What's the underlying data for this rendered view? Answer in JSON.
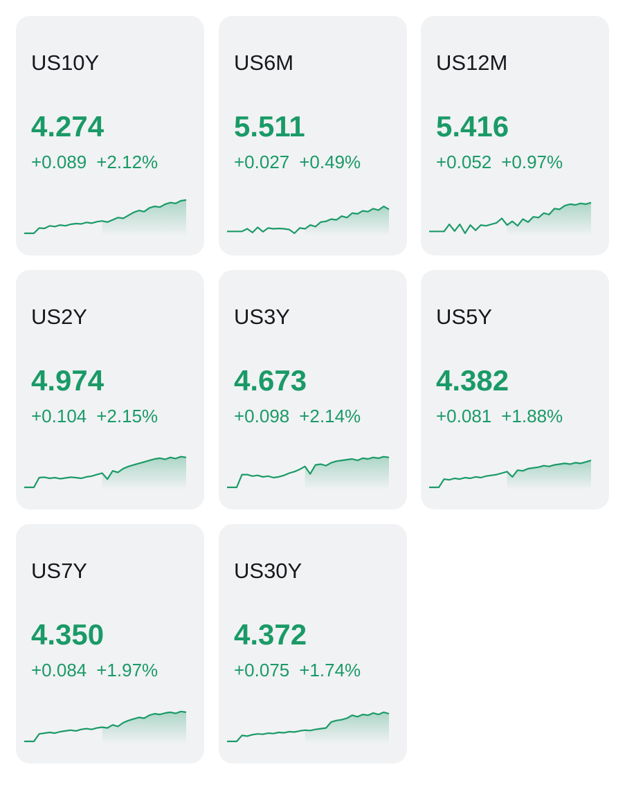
{
  "colors": {
    "positive": "#1a9a67",
    "card_bg": "#f1f2f4",
    "text": "#16181c"
  },
  "cards": [
    {
      "symbol": "US10Y",
      "price": "4.274",
      "change": "+0.089",
      "change_pct": "+2.12%",
      "series": [
        0.0,
        0.14,
        0.13,
        0.2,
        0.18,
        0.22,
        0.2,
        0.24,
        0.26,
        0.25,
        0.29,
        0.27,
        0.31,
        0.33,
        0.3,
        0.36,
        0.42,
        0.4,
        0.48,
        0.56,
        0.61,
        0.58,
        0.68,
        0.72,
        0.7,
        0.78,
        0.82,
        0.8,
        0.87,
        0.89
      ]
    },
    {
      "symbol": "US6M",
      "price": "5.511",
      "change": "+0.027",
      "change_pct": "+0.49%",
      "series": [
        0.05,
        0.05,
        0.12,
        0.02,
        0.16,
        0.04,
        0.14,
        0.12,
        0.13,
        0.12,
        0.1,
        0.0,
        0.14,
        0.12,
        0.22,
        0.18,
        0.3,
        0.32,
        0.38,
        0.36,
        0.46,
        0.42,
        0.54,
        0.52,
        0.6,
        0.58,
        0.66,
        0.62,
        0.72,
        0.64
      ]
    },
    {
      "symbol": "US12M",
      "price": "5.416",
      "change": "+0.052",
      "change_pct": "+0.97%",
      "series": [
        0.05,
        0.05,
        0.24,
        0.06,
        0.24,
        0.0,
        0.22,
        0.08,
        0.22,
        0.2,
        0.24,
        0.28,
        0.4,
        0.22,
        0.32,
        0.2,
        0.38,
        0.3,
        0.44,
        0.42,
        0.54,
        0.5,
        0.66,
        0.64,
        0.74,
        0.78,
        0.76,
        0.8,
        0.78,
        0.82
      ]
    },
    {
      "symbol": "US2Y",
      "price": "4.974",
      "change": "+0.104",
      "change_pct": "+2.15%",
      "series": [
        0.0,
        0.26,
        0.27,
        0.24,
        0.26,
        0.23,
        0.25,
        0.27,
        0.26,
        0.24,
        0.28,
        0.3,
        0.34,
        0.38,
        0.22,
        0.44,
        0.4,
        0.5,
        0.56,
        0.6,
        0.64,
        0.68,
        0.72,
        0.76,
        0.78,
        0.75,
        0.8,
        0.77,
        0.82,
        0.8
      ]
    },
    {
      "symbol": "US3Y",
      "price": "4.673",
      "change": "+0.098",
      "change_pct": "+2.14%",
      "series": [
        0.0,
        0.34,
        0.34,
        0.3,
        0.32,
        0.28,
        0.3,
        0.26,
        0.28,
        0.32,
        0.38,
        0.42,
        0.48,
        0.56,
        0.36,
        0.6,
        0.62,
        0.58,
        0.66,
        0.7,
        0.72,
        0.74,
        0.76,
        0.72,
        0.78,
        0.76,
        0.8,
        0.78,
        0.82,
        0.8
      ]
    },
    {
      "symbol": "US5Y",
      "price": "4.382",
      "change": "+0.081",
      "change_pct": "+1.88%",
      "series": [
        0.0,
        0.22,
        0.2,
        0.24,
        0.22,
        0.26,
        0.24,
        0.28,
        0.26,
        0.3,
        0.32,
        0.34,
        0.38,
        0.42,
        0.28,
        0.46,
        0.44,
        0.5,
        0.52,
        0.54,
        0.58,
        0.56,
        0.6,
        0.62,
        0.64,
        0.62,
        0.66,
        0.64,
        0.68,
        0.72
      ]
    },
    {
      "symbol": "US7Y",
      "price": "4.350",
      "change": "+0.084",
      "change_pct": "+1.97%",
      "series": [
        0.0,
        0.2,
        0.22,
        0.24,
        0.22,
        0.26,
        0.28,
        0.3,
        0.28,
        0.32,
        0.34,
        0.32,
        0.36,
        0.38,
        0.36,
        0.44,
        0.4,
        0.5,
        0.56,
        0.6,
        0.64,
        0.62,
        0.7,
        0.74,
        0.72,
        0.76,
        0.78,
        0.75,
        0.8,
        0.78
      ]
    },
    {
      "symbol": "US30Y",
      "price": "4.372",
      "change": "+0.075",
      "change_pct": "+1.74%",
      "series": [
        0.0,
        0.16,
        0.14,
        0.18,
        0.2,
        0.19,
        0.22,
        0.21,
        0.24,
        0.23,
        0.26,
        0.25,
        0.28,
        0.3,
        0.29,
        0.32,
        0.34,
        0.36,
        0.52,
        0.56,
        0.58,
        0.62,
        0.7,
        0.66,
        0.72,
        0.7,
        0.76,
        0.72,
        0.78,
        0.74
      ]
    }
  ]
}
